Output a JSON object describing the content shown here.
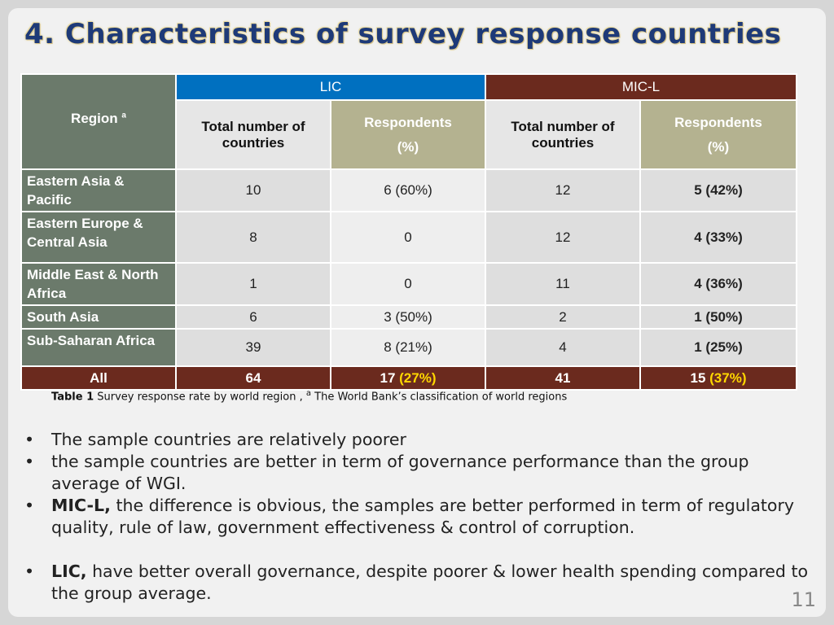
{
  "title": "4. Characteristics of survey response countries",
  "table": {
    "corner": {
      "text": "Region",
      "sup": "a"
    },
    "groups": [
      "LIC",
      "MIC-L"
    ],
    "subheaders": [
      {
        "label": "Total number of countries"
      },
      {
        "label": "Respondents",
        "unit": "(%)"
      },
      {
        "label": "Total number of countries"
      },
      {
        "label": "Respondents",
        "unit": "(%)"
      }
    ],
    "rows": [
      [
        "Eastern Asia & Pacific",
        "10",
        "6 (60%)",
        "12",
        "5 (42%)"
      ],
      [
        "Eastern Europe & Central Asia",
        "8",
        "0",
        "12",
        "4 (33%)"
      ],
      [
        "Middle East & North Africa",
        "1",
        "0",
        "11",
        "4 (36%)"
      ],
      [
        "South Asia",
        "6",
        "3 (50%)",
        "2",
        "1 (50%)"
      ],
      [
        "Sub-Saharan Africa",
        "39",
        "8 (21%)",
        "4",
        "1 (25%)"
      ]
    ],
    "total": {
      "label": "All",
      "cells": [
        {
          "main": "64"
        },
        {
          "main": "17",
          "highlight": "(27%)"
        },
        {
          "main": "41"
        },
        {
          "main": "15",
          "highlight": "(37%)"
        }
      ]
    }
  },
  "caption": {
    "bold": "Table 1",
    "text": "Survey response rate by world region ,",
    "sup": "a",
    "note": "The World Bank’s classification of world regions"
  },
  "bullets": [
    {
      "text": "The sample countries are relatively poorer"
    },
    {
      "text": "the sample countries are better in term of governance performance than the group average of WGI."
    },
    {
      "bold": "MIC-L,",
      "text": "the difference is obvious, the samples are better performed in term of regulatory quality, rule of law, government effectiveness & control of corruption."
    },
    {
      "bold": "LIC,",
      "text": " have better overall governance, despite poorer & lower health spending compared to the group average."
    }
  ],
  "page_number": "11"
}
